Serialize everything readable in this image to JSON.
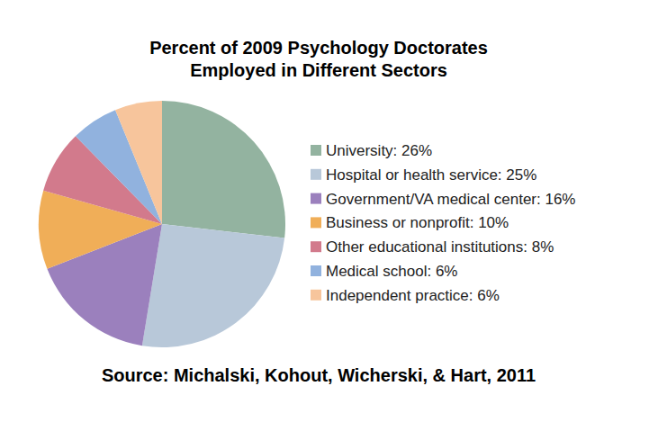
{
  "chart_data": {
    "type": "pie",
    "title": "Percent of 2009 Psychology Doctorates Employed in Different Sectors",
    "source": "Source: Michalski, Kohout, Wicherski, & Hart, 2011",
    "categories": [
      "University: 26%",
      "Hospital or health service: 25%",
      "Government/VA medical center: 16%",
      "Business or nonprofit: 10%",
      "Other educational institutions: 8%",
      "Medical school: 6%",
      "Independent practice: 6%"
    ],
    "values": [
      26,
      25,
      16,
      10,
      8,
      6,
      6
    ],
    "colors": [
      "#93b3a0",
      "#b8c8d9",
      "#9b80bd",
      "#f0ae58",
      "#d27a8c",
      "#91b2de",
      "#f7c59c"
    ],
    "legend": "right"
  }
}
